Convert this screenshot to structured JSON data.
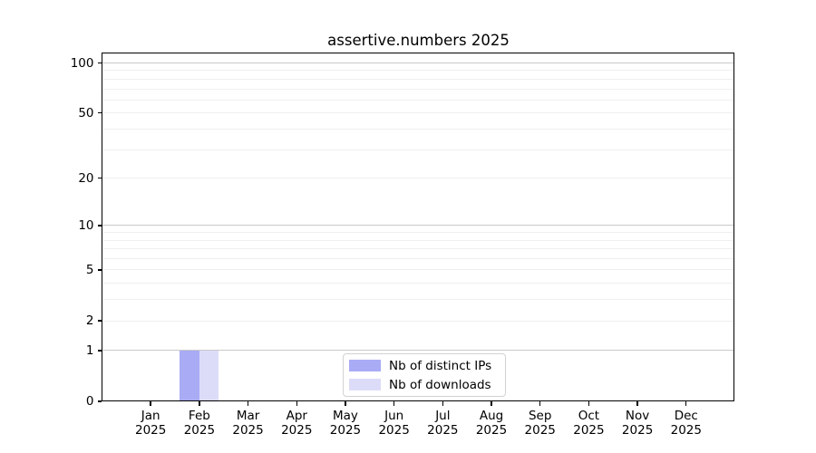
{
  "figure_title": "assertive.numbers 2025",
  "colors": {
    "background": "#ffffff",
    "spine": "#000000",
    "grid_major": "#c9c9c9",
    "grid_minor": "#efefef",
    "text": "#000000",
    "legend_border": "#d2d2d2",
    "series_ips": "#a9abf5",
    "series_downloads": "#dcdcf9"
  },
  "chart_data": {
    "type": "bar",
    "title": "assertive.numbers 2025",
    "x_categories": [
      "Jan 2025",
      "Feb 2025",
      "Mar 2025",
      "Apr 2025",
      "May 2025",
      "Jun 2025",
      "Jul 2025",
      "Aug 2025",
      "Sep 2025",
      "Oct 2025",
      "Nov 2025",
      "Dec 2025"
    ],
    "x_tick_month": [
      "Jan",
      "Feb",
      "Mar",
      "Apr",
      "May",
      "Jun",
      "Jul",
      "Aug",
      "Sep",
      "Oct",
      "Nov",
      "Dec"
    ],
    "x_tick_year": "2025",
    "series": [
      {
        "name": "Nb of distinct IPs",
        "color": "#a9abf5",
        "values": [
          0,
          1,
          0,
          0,
          0,
          0,
          0,
          0,
          0,
          0,
          0,
          0
        ]
      },
      {
        "name": "Nb of downloads",
        "color": "#dcdcf9",
        "values": [
          0,
          1,
          0,
          0,
          0,
          0,
          0,
          0,
          0,
          0,
          0,
          0
        ]
      }
    ],
    "y_axis": {
      "scale": "log1p",
      "tick_labels": [
        "100",
        "50",
        "20",
        "10",
        "5",
        "2",
        "1",
        "0"
      ],
      "tick_values": [
        100,
        50,
        20,
        10,
        5,
        2,
        1,
        0
      ],
      "major_gridlines": [
        1,
        10,
        100
      ],
      "minor_gridlines": [
        2,
        3,
        4,
        5,
        6,
        7,
        8,
        9,
        20,
        30,
        40,
        50,
        60,
        70,
        80,
        90
      ],
      "ylim": [
        0,
        115
      ]
    },
    "legend": {
      "position": "lower center",
      "entries": [
        {
          "label": "Nb of distinct IPs",
          "color": "#a9abf5"
        },
        {
          "label": "Nb of downloads",
          "color": "#dcdcf9"
        }
      ]
    },
    "grid": true
  }
}
